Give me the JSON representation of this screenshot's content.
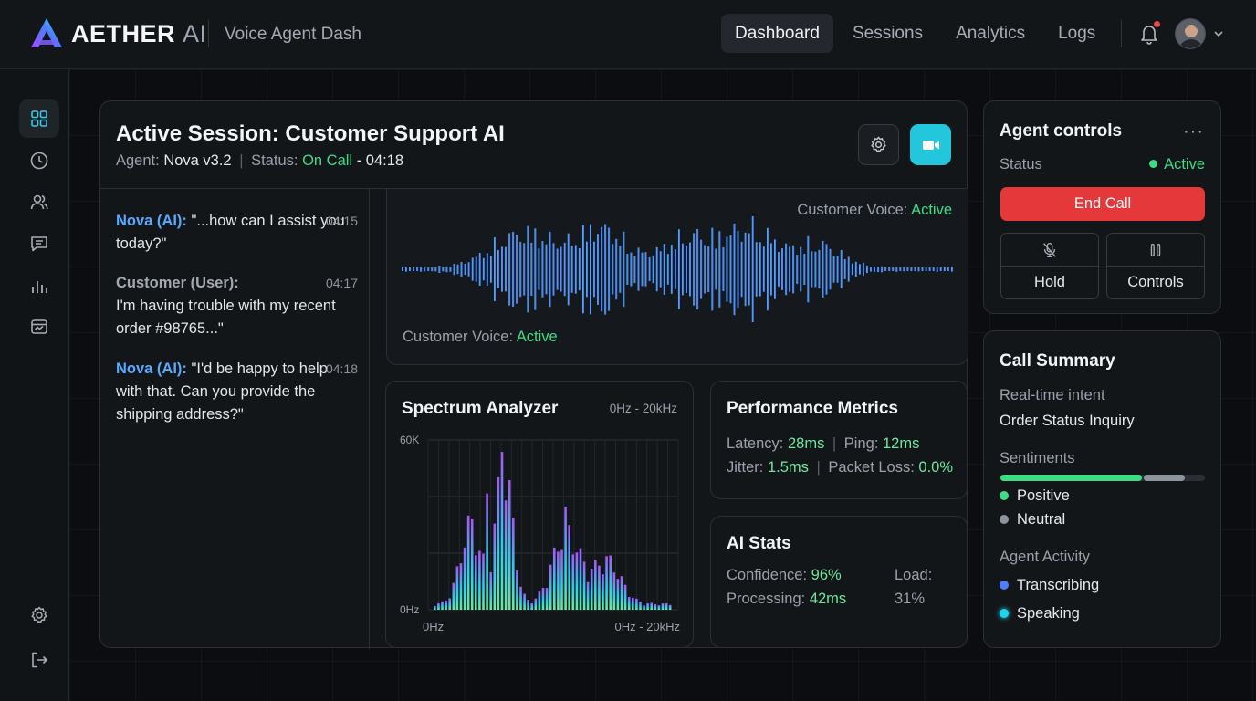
{
  "header": {
    "brand": "AETHER",
    "brand_suffix": "AI",
    "subtitle": "Voice Agent Dash",
    "tabs": [
      {
        "label": "Dashboard",
        "active": true
      },
      {
        "label": "Sessions",
        "active": false
      },
      {
        "label": "Analytics",
        "active": false
      },
      {
        "label": "Logs",
        "active": false
      }
    ],
    "notification_unread": true
  },
  "sidebar": {
    "items": [
      {
        "icon": "grid-icon",
        "active": true
      },
      {
        "icon": "clock-icon",
        "active": false
      },
      {
        "icon": "users-icon",
        "active": false
      },
      {
        "icon": "message-icon",
        "active": false
      },
      {
        "icon": "bar-chart-icon",
        "active": false
      },
      {
        "icon": "dashboard-card-icon",
        "active": false
      },
      {
        "icon": "gear-icon",
        "active": false
      },
      {
        "icon": "logout-icon",
        "active": false
      }
    ]
  },
  "session": {
    "title": "Active Session: Customer Support AI",
    "agent_label": "Agent:",
    "agent_name": "Nova v3.2",
    "status_label": "Status:",
    "status_value": "On Call",
    "duration": "- 04:18",
    "messages": [
      {
        "speaker": "Nova (AI):",
        "role": "ai",
        "text": "\"...how can I assist you today?\"",
        "time": "04:15"
      },
      {
        "speaker": "Customer (User):",
        "role": "user",
        "text": "I'm having trouble with my recent order #98765...\"",
        "time": "04:17"
      },
      {
        "speaker": "Nova (AI):",
        "role": "ai",
        "text": "\"I'd be happy to help with that. Can you provide the shipping address?\"",
        "time": "04:18"
      }
    ],
    "voice_label": "Customer Voice:",
    "voice_status": "Active"
  },
  "spectrum": {
    "title": "Spectrum Analyzer",
    "range": "0Hz - 20kHz",
    "y_top_label": "60K",
    "y_bottom_label": "0Hz",
    "x_left_label": "0Hz",
    "x_right_label": "0Hz - 20kHz"
  },
  "performance": {
    "title": "Performance Metrics",
    "latency_label": "Latency:",
    "latency": "28ms",
    "ping_label": "Ping:",
    "ping": "12ms",
    "jitter_label": "Jitter:",
    "jitter": "1.5ms",
    "packet_loss_label": "Packet Loss:",
    "packet_loss": "0.0%"
  },
  "ai_stats": {
    "title": "AI Stats",
    "confidence_label": "Confidence:",
    "confidence": "96%",
    "processing_label": "Processing:",
    "processing": "42ms",
    "load_label": "Load:",
    "load": "31%"
  },
  "agent_controls": {
    "title": "Agent controls",
    "more": "···",
    "status_label": "Status",
    "status_value": "Active",
    "end_call": "End Call",
    "hold": "Hold",
    "controls": "Controls"
  },
  "call_summary": {
    "title": "Call Summary",
    "intent_label": "Real-time intent",
    "intent_value": "Order Status Inquiry",
    "sentiments_label": "Sentiments",
    "sentiment_positive_share": 0.69,
    "sentiment_neutral_share": 0.2,
    "positive": "Positive",
    "neutral": "Neutral",
    "activity_label": "Agent Activity",
    "transcribing": "Transcribing",
    "speaking": "Speaking"
  },
  "colors": {
    "accent_cyan": "#22c7dc",
    "positive_green": "#3ddc84",
    "danger_red": "#e5383b",
    "ai_blue": "#5aa9ff"
  }
}
